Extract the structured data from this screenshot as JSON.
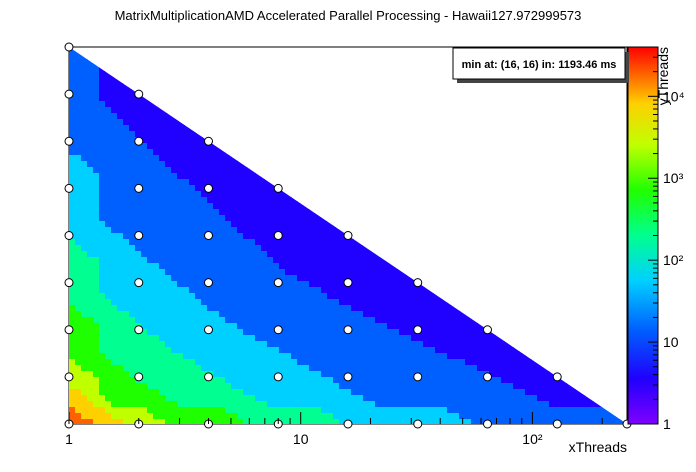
{
  "chart_data": {
    "type": "heatmap",
    "title": "MatrixMultiplicationAMD Accelerated Parallel Processing - Hawaii127.972999573",
    "xlabel": "xThreads",
    "ylabel": "yThreads",
    "x_scale": "log",
    "y_scale": "log",
    "z_scale": "log",
    "xlim": [
      1,
      256
    ],
    "ylim": [
      1,
      256
    ],
    "zlim": [
      1,
      40000
    ],
    "x_ticks": [
      {
        "value": 1,
        "label": "1"
      },
      {
        "value": 10,
        "label": "10"
      },
      {
        "value": 100,
        "label": "10²"
      }
    ],
    "z_ticks": [
      {
        "value": 1,
        "label": "1"
      },
      {
        "value": 10,
        "label": "10"
      },
      {
        "value": 100,
        "label": "10²"
      },
      {
        "value": 1000,
        "label": "10³"
      },
      {
        "value": 10000,
        "label": "10⁴"
      }
    ],
    "annotation": "min at: (16, 16) in: 1193.46 ms",
    "legend_position": "top-right",
    "grid": false,
    "palette": [
      "#7f00ff",
      "#2000ff",
      "#0060ff",
      "#00d0ff",
      "#00ff90",
      "#20ff00",
      "#c0ff00",
      "#ffd000",
      "#ff6000",
      "#ff0000"
    ],
    "sample_points": [
      [
        1,
        1
      ],
      [
        1,
        2
      ],
      [
        1,
        4
      ],
      [
        1,
        8
      ],
      [
        1,
        16
      ],
      [
        1,
        32
      ],
      [
        1,
        64
      ],
      [
        1,
        128
      ],
      [
        1,
        256
      ],
      [
        2,
        1
      ],
      [
        2,
        2
      ],
      [
        2,
        4
      ],
      [
        2,
        8
      ],
      [
        2,
        16
      ],
      [
        2,
        32
      ],
      [
        2,
        64
      ],
      [
        2,
        128
      ],
      [
        4,
        1
      ],
      [
        4,
        2
      ],
      [
        4,
        4
      ],
      [
        4,
        8
      ],
      [
        4,
        16
      ],
      [
        4,
        32
      ],
      [
        4,
        64
      ],
      [
        8,
        1
      ],
      [
        8,
        2
      ],
      [
        8,
        4
      ],
      [
        8,
        8
      ],
      [
        8,
        16
      ],
      [
        8,
        32
      ],
      [
        16,
        1
      ],
      [
        16,
        2
      ],
      [
        16,
        4
      ],
      [
        16,
        8
      ],
      [
        16,
        16
      ],
      [
        32,
        1
      ],
      [
        32,
        2
      ],
      [
        32,
        4
      ],
      [
        32,
        8
      ],
      [
        64,
        1
      ],
      [
        64,
        2
      ],
      [
        64,
        4
      ],
      [
        128,
        1
      ],
      [
        128,
        2
      ],
      [
        256,
        1
      ]
    ]
  }
}
